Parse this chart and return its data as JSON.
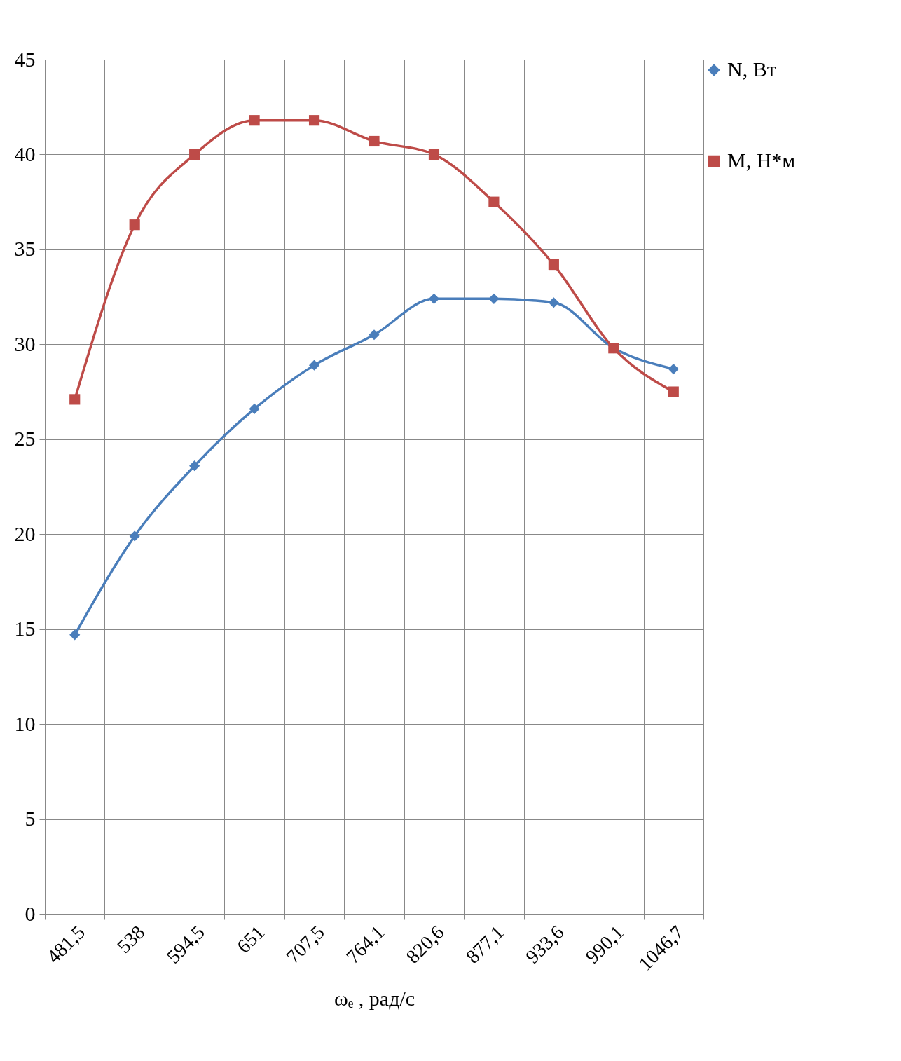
{
  "chart_data": {
    "type": "line",
    "xlabel": "ωₑ , рад/с",
    "categories": [
      "481,5",
      "538",
      "594,5",
      "651",
      "707,5",
      "764,1",
      "820,6",
      "877,1",
      "933,6",
      "990,1",
      "1046,7"
    ],
    "ylim": [
      0,
      45
    ],
    "yticks": [
      0,
      5,
      10,
      15,
      20,
      25,
      30,
      35,
      40,
      45
    ],
    "grid": true,
    "legend": "right",
    "line_style": "solid",
    "series": [
      {
        "name": "N, Вт",
        "color": "#4a7ebb",
        "marker": "diamond",
        "values": [
          14.7,
          19.9,
          23.6,
          26.6,
          28.9,
          30.5,
          32.4,
          32.4,
          32.2,
          29.8,
          28.7
        ]
      },
      {
        "name": "M, Н*м",
        "color": "#be4b48",
        "marker": "square",
        "values": [
          27.1,
          36.3,
          40.0,
          41.8,
          41.8,
          40.7,
          40.0,
          37.5,
          34.2,
          29.8,
          27.5
        ]
      }
    ]
  }
}
